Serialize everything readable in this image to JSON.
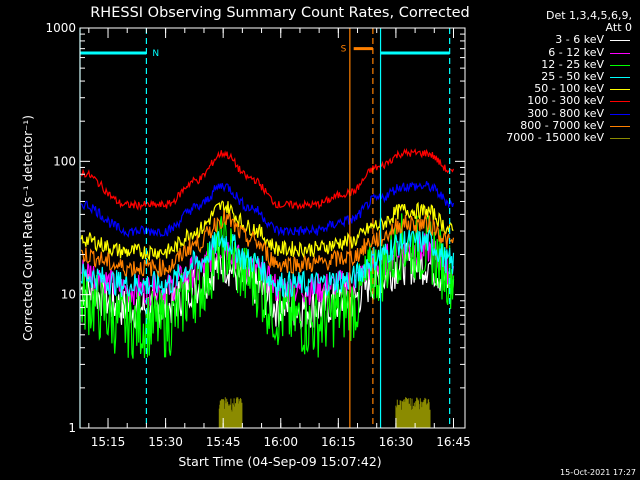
{
  "chart_data": {
    "type": "line",
    "title": "RHESSI Observing Summary Count Rates, Corrected",
    "xlabel": "Start Time (04-Sep-09 15:07:42)",
    "ylabel": "Corrected Count Rate (s⁻¹ detector⁻¹)",
    "yscale": "log",
    "ylim": [
      1,
      1000
    ],
    "y_ticks": [
      "1",
      "10",
      "100",
      "1000"
    ],
    "xlim": [
      "15:07:42",
      "16:48"
    ],
    "x_ticks": [
      "15:15",
      "15:30",
      "15:45",
      "16:00",
      "16:15",
      "16:30",
      "16:45"
    ],
    "grid": false,
    "legend": {
      "placement": "right",
      "header": [
        "Det 1,3,4,5,6,9,",
        "Att 0"
      ]
    },
    "series": [
      {
        "name": "3 - 6 keV",
        "color": "#ffffff",
        "x": [
          "15:08",
          "15:20",
          "15:30",
          "15:38",
          "15:45",
          "15:52",
          "16:00",
          "16:08",
          "16:18",
          "16:25",
          "16:32",
          "16:38",
          "16:45"
        ],
        "values": [
          11,
          8,
          8,
          12,
          17,
          12,
          8,
          8,
          9,
          13,
          17,
          17,
          12
        ]
      },
      {
        "name": "6 - 12 keV",
        "color": "#ff00ff",
        "x": [
          "15:08",
          "15:20",
          "15:30",
          "15:38",
          "15:45",
          "15:52",
          "16:00",
          "16:08",
          "16:18",
          "16:25",
          "16:32",
          "16:38",
          "16:45"
        ],
        "values": [
          15,
          11,
          11,
          15,
          23,
          16,
          11,
          11,
          12,
          17,
          22,
          22,
          15
        ]
      },
      {
        "name": "12 - 25 keV",
        "color": "#00ff00",
        "x": [
          "15:08",
          "15:20",
          "15:30",
          "15:38",
          "15:45",
          "15:52",
          "16:00",
          "16:08",
          "16:18",
          "16:25",
          "16:32",
          "16:38",
          "16:45"
        ],
        "values": [
          9,
          6,
          6,
          11,
          22,
          13,
          7,
          6,
          8,
          15,
          23,
          22,
          14
        ]
      },
      {
        "name": "25 - 50 keV",
        "color": "#00ffff",
        "x": [
          "15:08",
          "15:20",
          "15:30",
          "15:38",
          "15:45",
          "15:52",
          "16:00",
          "16:08",
          "16:18",
          "16:25",
          "16:32",
          "16:38",
          "16:45"
        ],
        "values": [
          14,
          12,
          12,
          17,
          26,
          18,
          12,
          12,
          13,
          19,
          25,
          25,
          17
        ]
      },
      {
        "name": "50 - 100 keV",
        "color": "#ffff00",
        "x": [
          "15:08",
          "15:20",
          "15:30",
          "15:38",
          "15:45",
          "15:52",
          "16:00",
          "16:08",
          "16:18",
          "16:25",
          "16:32",
          "16:38",
          "16:45"
        ],
        "values": [
          26,
          21,
          21,
          30,
          46,
          32,
          22,
          22,
          25,
          33,
          43,
          42,
          30
        ]
      },
      {
        "name": "100 - 300 keV",
        "color": "#ff0000",
        "x": [
          "15:08",
          "15:20",
          "15:30",
          "15:38",
          "15:45",
          "15:52",
          "16:00",
          "16:08",
          "16:18",
          "16:25",
          "16:32",
          "16:38",
          "16:45"
        ],
        "values": [
          82,
          47,
          47,
          72,
          115,
          75,
          47,
          47,
          58,
          90,
          115,
          115,
          82
        ]
      },
      {
        "name": "300 - 800 keV",
        "color": "#0000ff",
        "x": [
          "15:08",
          "15:20",
          "15:30",
          "15:38",
          "15:45",
          "15:52",
          "16:00",
          "16:08",
          "16:18",
          "16:25",
          "16:32",
          "16:38",
          "16:45"
        ],
        "values": [
          48,
          30,
          30,
          45,
          66,
          45,
          30,
          30,
          36,
          52,
          65,
          65,
          48
        ]
      },
      {
        "name": "800 - 7000 keV",
        "color": "#ff8000",
        "x": [
          "15:08",
          "15:20",
          "15:30",
          "15:38",
          "15:45",
          "15:52",
          "16:00",
          "16:08",
          "16:18",
          "16:25",
          "16:32",
          "16:38",
          "16:45"
        ],
        "values": [
          20,
          16,
          16,
          24,
          37,
          26,
          17,
          17,
          19,
          26,
          34,
          34,
          24
        ]
      },
      {
        "name": "7000 - 15000 keV",
        "color": "#8b8b00",
        "x": [
          "15:08",
          "15:44",
          "15:50",
          "16:30",
          "16:39"
        ],
        "values": [
          1,
          1.5,
          1.5,
          1.5,
          1.5
        ]
      }
    ],
    "bands": [
      {
        "label": "N",
        "color": "#00ffff",
        "x_start": "15:07:42",
        "x_end": "15:25",
        "y": 650
      },
      {
        "label": "S",
        "color": "#ff8000",
        "x_start": "16:19",
        "x_end": "16:24",
        "y": 700
      },
      {
        "label": "",
        "color": "#00ffff",
        "x_start": "16:26",
        "x_end": "16:44",
        "y": 650
      }
    ],
    "vlines": [
      {
        "x": "15:07:42",
        "color": "#00ffff",
        "style": "solid"
      },
      {
        "x": "15:25",
        "color": "#00ffff",
        "style": "dashed"
      },
      {
        "x": "16:18",
        "color": "#ff8000",
        "style": "solid"
      },
      {
        "x": "16:24",
        "color": "#ff8000",
        "style": "dashed"
      },
      {
        "x": "16:26",
        "color": "#00ffff",
        "style": "solid"
      },
      {
        "x": "16:44",
        "color": "#00ffff",
        "style": "dashed"
      }
    ]
  },
  "footer": {
    "timestamp": "15-Oct-2021 17:27"
  }
}
